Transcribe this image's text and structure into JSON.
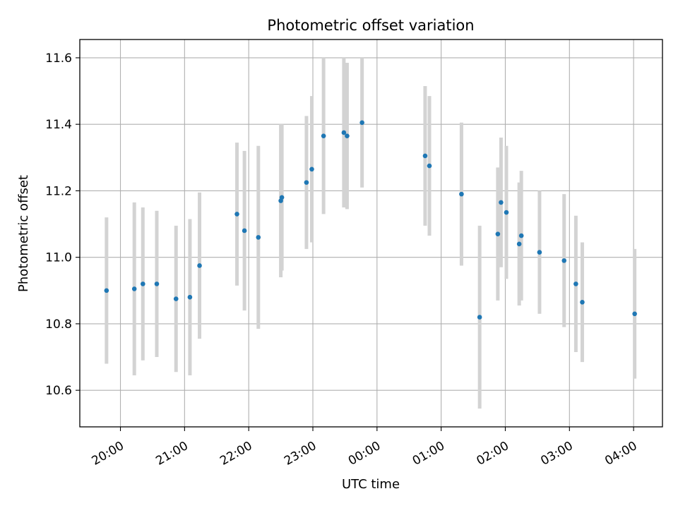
{
  "chart_data": {
    "type": "scatter",
    "title": "Photometric offset variation",
    "xlabel": "UTC time",
    "ylabel": "Photometric offset",
    "grid": true,
    "x_tick_labels": [
      "20:00",
      "21:00",
      "22:00",
      "23:00",
      "00:00",
      "01:00",
      "02:00",
      "03:00",
      "04:00"
    ],
    "y_ticks": [
      10.6,
      10.8,
      11.0,
      11.2,
      11.4,
      11.6
    ],
    "xlim": [
      "19:22",
      "04:27"
    ],
    "ylim": [
      10.49,
      11.655
    ],
    "colors": {
      "point": "#1f77b4",
      "errorbar": "#d3d3d3",
      "grid": "#b0b0b0"
    },
    "points": [
      {
        "x": "19:47",
        "y": 10.9,
        "yerr": 0.22
      },
      {
        "x": "20:13",
        "y": 10.905,
        "yerr": 0.26
      },
      {
        "x": "20:21",
        "y": 10.92,
        "yerr": 0.23
      },
      {
        "x": "20:34",
        "y": 10.92,
        "yerr": 0.22
      },
      {
        "x": "20:52",
        "y": 10.875,
        "yerr": 0.22
      },
      {
        "x": "21:05",
        "y": 10.88,
        "yerr": 0.235
      },
      {
        "x": "21:14",
        "y": 10.975,
        "yerr": 0.22
      },
      {
        "x": "21:49",
        "y": 11.13,
        "yerr": 0.215
      },
      {
        "x": "21:56",
        "y": 11.08,
        "yerr": 0.24
      },
      {
        "x": "22:09",
        "y": 11.06,
        "yerr": 0.275
      },
      {
        "x": "22:30",
        "y": 11.17,
        "yerr": 0.23
      },
      {
        "x": "22:31",
        "y": 11.18,
        "yerr": 0.22
      },
      {
        "x": "22:54",
        "y": 11.225,
        "yerr": 0.2
      },
      {
        "x": "22:59",
        "y": 11.265,
        "yerr": 0.22
      },
      {
        "x": "23:10",
        "y": 11.365,
        "yerr": 0.235
      },
      {
        "x": "23:29",
        "y": 11.375,
        "yerr": 0.225
      },
      {
        "x": "23:32",
        "y": 11.365,
        "yerr": 0.22
      },
      {
        "x": "23:46",
        "y": 11.405,
        "yerr": 0.195
      },
      {
        "x": "00:45",
        "y": 11.305,
        "yerr": 0.21
      },
      {
        "x": "00:49",
        "y": 11.275,
        "yerr": 0.21
      },
      {
        "x": "01:19",
        "y": 11.19,
        "yerr": 0.215
      },
      {
        "x": "01:36",
        "y": 10.82,
        "yerr": 0.275
      },
      {
        "x": "01:53",
        "y": 11.07,
        "yerr": 0.2
      },
      {
        "x": "01:56",
        "y": 11.165,
        "yerr": 0.195
      },
      {
        "x": "02:01",
        "y": 11.135,
        "yerr": 0.2
      },
      {
        "x": "02:13",
        "y": 11.04,
        "yerr": 0.185
      },
      {
        "x": "02:15",
        "y": 11.065,
        "yerr": 0.195
      },
      {
        "x": "02:32",
        "y": 11.015,
        "yerr": 0.185
      },
      {
        "x": "02:55",
        "y": 10.99,
        "yerr": 0.2
      },
      {
        "x": "03:06",
        "y": 10.92,
        "yerr": 0.205
      },
      {
        "x": "03:12",
        "y": 10.865,
        "yerr": 0.18
      },
      {
        "x": "04:01",
        "y": 10.83,
        "yerr": 0.195
      }
    ]
  }
}
